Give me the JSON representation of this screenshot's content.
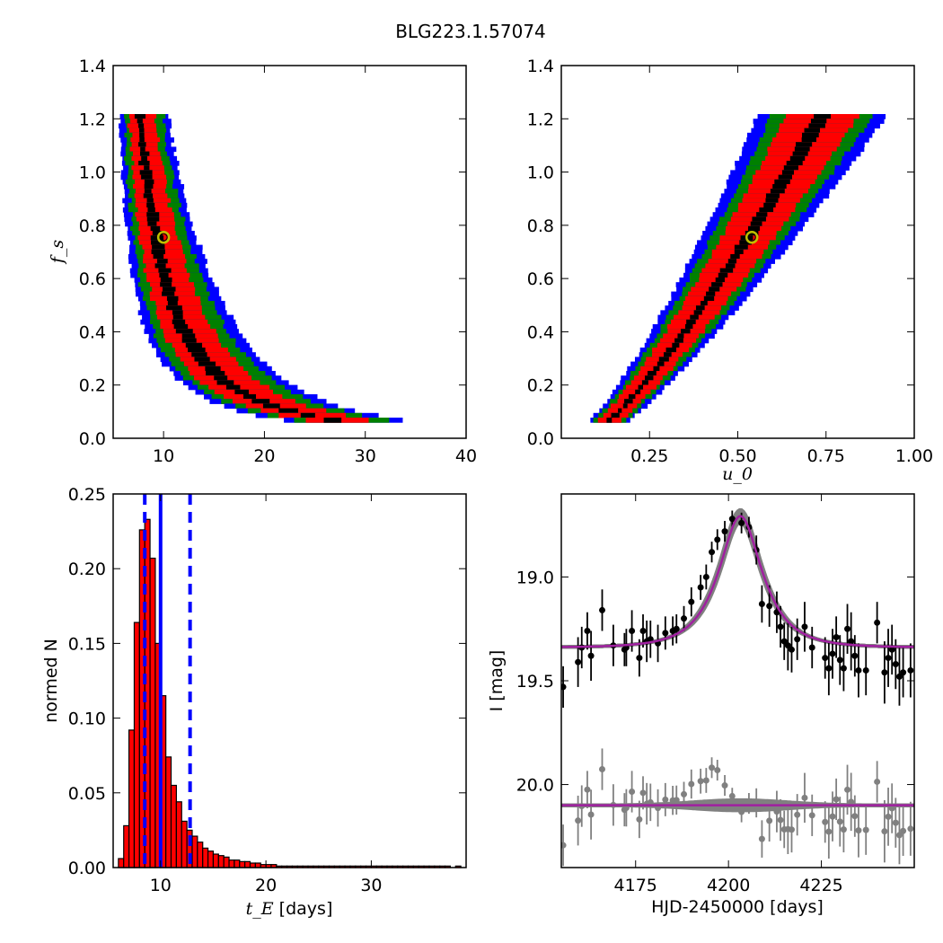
{
  "figure": {
    "title": "BLG223.1.57074",
    "colors": {
      "blue": "#0000ff",
      "green": "#008000",
      "red": "#ff0000",
      "black": "#000000",
      "marker_edge": "#bfbf00",
      "model": "#a020a0",
      "gray": "#808080"
    }
  },
  "chart_data": [
    {
      "type": "scatter",
      "panel": "top-left",
      "xlabel": "",
      "ylabel": "f_s",
      "ylabel_math": true,
      "xlim": [
        5,
        40
      ],
      "ylim": [
        0.0,
        1.4
      ],
      "xticks": [
        10,
        20,
        30,
        40
      ],
      "xtick_labels": [
        "10",
        "20",
        "30",
        "40"
      ],
      "yticks": [
        0.0,
        0.2,
        0.4,
        0.6,
        0.8,
        1.0,
        1.2,
        1.4
      ],
      "ytick_labels": [
        "0.0",
        "0.2",
        "0.4",
        "0.6",
        "0.8",
        "1.0",
        "1.2",
        "1.4"
      ],
      "description_of_bands": "confidence regions (blue, green, red, black) of MCMC samples in tE vs fs",
      "best_fit": {
        "x": 10.0,
        "y": 0.755
      }
    },
    {
      "type": "scatter",
      "panel": "top-right",
      "xlabel": "u_0",
      "xlabel_math": true,
      "ylabel": "",
      "xlim": [
        0.0,
        1.0
      ],
      "ylim": [
        0.0,
        1.4
      ],
      "xticks": [
        0.25,
        0.5,
        0.75,
        1.0
      ],
      "xtick_labels": [
        "0.25",
        "0.50",
        "0.75",
        "1.00"
      ],
      "yticks": [
        0.0,
        0.2,
        0.4,
        0.6,
        0.8,
        1.0,
        1.2,
        1.4
      ],
      "ytick_labels": [
        "0.0",
        "0.2",
        "0.4",
        "0.6",
        "0.8",
        "1.0",
        "1.2",
        "1.4"
      ],
      "best_fit": {
        "x": 0.54,
        "y": 0.755
      }
    },
    {
      "type": "bar",
      "panel": "bottom-left",
      "xlabel_math": "t_E",
      "xlabel": " [days]",
      "ylabel": "normed N",
      "xlim": [
        5.5,
        39
      ],
      "ylim": [
        0.0,
        0.25
      ],
      "xticks": [
        10,
        20,
        30
      ],
      "xtick_labels": [
        "10",
        "20",
        "30"
      ],
      "yticks": [
        0.0,
        0.05,
        0.1,
        0.15,
        0.2,
        0.25
      ],
      "ytick_labels": [
        "0.00",
        "0.05",
        "0.10",
        "0.15",
        "0.20",
        "0.25"
      ],
      "bin_start": 6.0,
      "bin_width": 0.5,
      "values": [
        0.006,
        0.028,
        0.092,
        0.164,
        0.226,
        0.233,
        0.207,
        0.15,
        0.115,
        0.074,
        0.055,
        0.044,
        0.031,
        0.025,
        0.021,
        0.017,
        0.013,
        0.011,
        0.009,
        0.008,
        0.007,
        0.005,
        0.005,
        0.004,
        0.004,
        0.003,
        0.003,
        0.002,
        0.002,
        0.002,
        0.001,
        0.001,
        0.001,
        0.001,
        0.001,
        0.001,
        0.001,
        0.001,
        0.001,
        0.001,
        0.001,
        0.001,
        0.001,
        0.001,
        0.001,
        0.001,
        0.001,
        0.001,
        0.001,
        0.001,
        0.001,
        0.001,
        0.001,
        0.001,
        0.001,
        0.001,
        0.001,
        0.001,
        0.001,
        0.001,
        0.001,
        0.001,
        0.001,
        0.0,
        0.001
      ],
      "median_line": 10.0,
      "interval_lines": [
        8.5,
        12.8
      ]
    },
    {
      "type": "line",
      "panel": "bottom-right",
      "xlabel": "HJD-2450000 [days]",
      "ylabel": "I [mag]",
      "xlim": [
        4155,
        4250
      ],
      "ylim_inverted": [
        20.4,
        18.6
      ],
      "xticks": [
        4175,
        4200,
        4225
      ],
      "xtick_labels": [
        "4175",
        "4200",
        "4225"
      ],
      "yticks": [
        19.0,
        19.5,
        20.0
      ],
      "ytick_labels": [
        "19.0",
        "19.5",
        "20.0"
      ],
      "model": {
        "t0": 4203.2,
        "tE": 10.0,
        "u0": 0.54,
        "fs": 0.755,
        "baseline": 19.34
      },
      "residual_offset": 20.1,
      "series": [
        {
          "name": "",
          "x": [
            4155.5,
            4159.5,
            4160.5,
            4162.0,
            4163.0,
            4166.0,
            4169.0,
            4172.0,
            4172.5,
            4174.0,
            4176.0,
            4177.0,
            4178.0,
            4179.0,
            4181.0,
            4183.0,
            4185.0,
            4186.0,
            4188.0,
            4190.0,
            4192.5,
            4194.0,
            4195.5,
            4197.0,
            4199.0,
            4201.0,
            4203.5,
            4205.5,
            4207.5,
            4209.0,
            4211.0,
            4213.0,
            4214.0,
            4215.0,
            4216.0,
            4217.0,
            4218.5,
            4220.5,
            4222.5,
            4226.0,
            4227.0,
            4228.0,
            4229.0,
            4230.0,
            4231.0,
            4232.0,
            4233.0,
            4234.0,
            4235.0,
            4237.0,
            4240.0,
            4242.0,
            4243.0,
            4244.0,
            4245.0,
            4246.0,
            4247.0,
            4249.0
          ],
          "y": [
            19.53,
            19.41,
            19.34,
            19.26,
            19.38,
            19.16,
            19.33,
            19.35,
            19.34,
            19.26,
            19.39,
            19.26,
            19.31,
            19.3,
            19.32,
            19.27,
            19.26,
            19.25,
            19.2,
            19.12,
            19.05,
            19.0,
            18.88,
            18.82,
            18.78,
            18.72,
            18.74,
            18.76,
            18.87,
            19.13,
            19.14,
            19.17,
            19.24,
            19.31,
            19.33,
            19.35,
            19.3,
            19.24,
            19.34,
            19.39,
            19.44,
            19.37,
            19.29,
            19.4,
            19.44,
            19.25,
            19.31,
            19.38,
            19.45,
            19.45,
            19.22,
            19.46,
            19.39,
            19.35,
            19.42,
            19.48,
            19.46,
            19.45
          ],
          "err": [
            0.1,
            0.12,
            0.1,
            0.09,
            0.12,
            0.1,
            0.1,
            0.08,
            0.09,
            0.1,
            0.09,
            0.08,
            0.1,
            0.09,
            0.09,
            0.08,
            0.07,
            0.07,
            0.06,
            0.07,
            0.06,
            0.06,
            0.05,
            0.05,
            0.05,
            0.04,
            0.05,
            0.05,
            0.07,
            0.09,
            0.1,
            0.1,
            0.1,
            0.09,
            0.12,
            0.11,
            0.1,
            0.12,
            0.1,
            0.1,
            0.13,
            0.12,
            0.1,
            0.12,
            0.11,
            0.12,
            0.14,
            0.1,
            0.13,
            0.12,
            0.1,
            0.15,
            0.14,
            0.12,
            0.12,
            0.14,
            0.12,
            0.13
          ]
        }
      ]
    }
  ]
}
